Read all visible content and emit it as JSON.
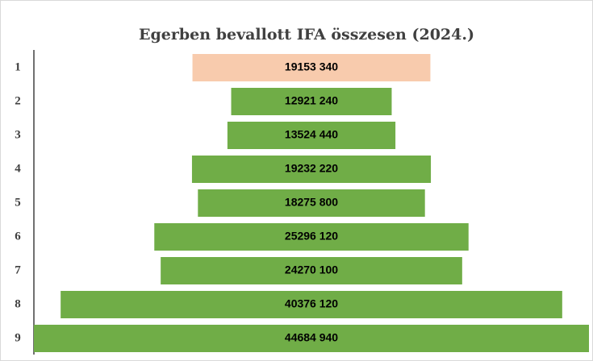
{
  "chart_data": {
    "type": "funnel",
    "title": "Egerben bevallott IFA összesen (2024.)",
    "categories": [
      "1",
      "2",
      "3",
      "4",
      "5",
      "6",
      "7",
      "8",
      "9"
    ],
    "values": [
      19153340,
      12921240,
      13524440,
      19232220,
      18275800,
      25296120,
      24270100,
      40376120,
      44684940
    ],
    "value_labels": [
      "19153 340",
      "12921 240",
      "13524 440",
      "19232 220",
      "18275 800",
      "25296 120",
      "24270 100",
      "40376 120",
      "44684 940"
    ],
    "colors": [
      "#f8cbad",
      "#70ad47",
      "#70ad47",
      "#70ad47",
      "#70ad47",
      "#70ad47",
      "#70ad47",
      "#70ad47",
      "#70ad47"
    ],
    "xlim": [
      0,
      44684940
    ]
  }
}
